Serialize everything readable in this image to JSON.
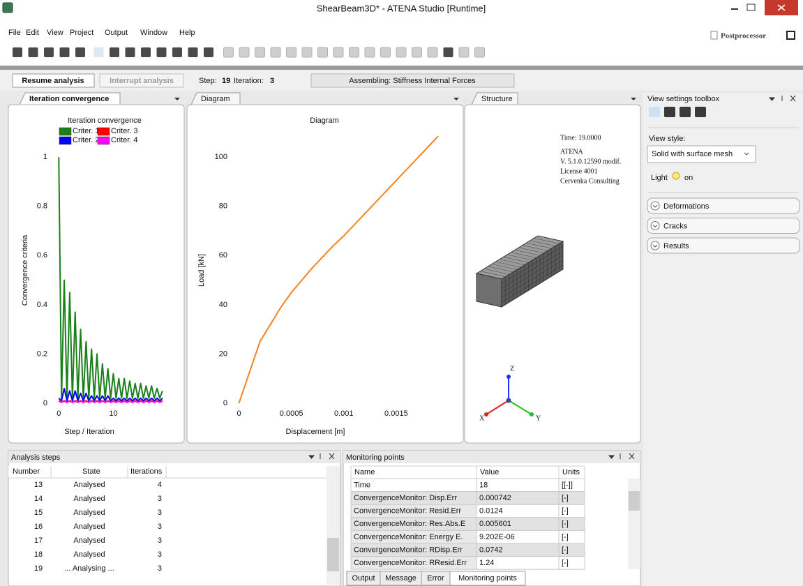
{
  "window": {
    "title": "ShearBeam3D* - ATENA Studio [Runtime]"
  },
  "menu": [
    "File",
    "Edit",
    "View",
    "Project",
    "Output",
    "Window",
    "Help"
  ],
  "mode": "Postprocessor",
  "run_bar": {
    "resume": "Resume analysis",
    "interrupt": "Interrupt analysis",
    "step_label": "Step:",
    "step": 19,
    "iteration_label": "Iteration:",
    "iteration": 3,
    "status": "Assembling: Stiffness Internal Forces"
  },
  "tabs": {
    "convergence": "Iteration convergence",
    "diagram": "Diagram",
    "structure": "Structure"
  },
  "chart_data": [
    {
      "type": "line",
      "title": "Iteration convergence",
      "x_label": "Step / Iteration",
      "y_label": "Convergence criteria",
      "x": [
        0,
        0.5,
        1,
        1.5,
        2,
        2.5,
        3,
        3.5,
        4,
        4.5,
        5,
        5.5,
        6,
        6.5,
        7,
        7.5,
        8,
        8.5,
        9,
        9.5,
        10,
        10.5,
        11,
        11.5,
        12,
        12.5,
        13,
        13.5,
        14,
        14.5,
        15,
        15.5,
        16,
        16.5,
        17,
        17.5,
        18,
        18.5,
        19
      ],
      "series": [
        {
          "name": "Criter. 1",
          "color": "#1a801a",
          "values": [
            1.0,
            0.02,
            0.5,
            0.02,
            0.45,
            0.02,
            0.37,
            0.02,
            0.3,
            0.02,
            0.25,
            0.02,
            0.22,
            0.02,
            0.2,
            0.02,
            0.16,
            0.02,
            0.14,
            0.02,
            0.12,
            0.02,
            0.1,
            0.02,
            0.1,
            0.02,
            0.09,
            0.02,
            0.08,
            0.02,
            0.08,
            0.02,
            0.07,
            0.02,
            0.07,
            0.02,
            0.06,
            0.02,
            0.05
          ]
        },
        {
          "name": "Criter. 2",
          "color": "#0000ff",
          "values": [
            0.02,
            0.01,
            0.06,
            0.01,
            0.05,
            0.01,
            0.05,
            0.01,
            0.04,
            0.01,
            0.04,
            0.01,
            0.03,
            0.01,
            0.03,
            0.01,
            0.03,
            0.01,
            0.03,
            0.01,
            0.02,
            0.01,
            0.02,
            0.01,
            0.02,
            0.01,
            0.02,
            0.01,
            0.02,
            0.01,
            0.02,
            0.01,
            0.02,
            0.01,
            0.02,
            0.01,
            0.02,
            0.01,
            0.02
          ]
        },
        {
          "name": "Criter. 3",
          "color": "#ff0000",
          "values": [
            0.01,
            0.005,
            0.01,
            0.005,
            0.01,
            0.005,
            0.01,
            0.005,
            0.01,
            0.005,
            0.01,
            0.005,
            0.01,
            0.005,
            0.01,
            0.005,
            0.01,
            0.005,
            0.01,
            0.005,
            0.01,
            0.005,
            0.01,
            0.005,
            0.01,
            0.005,
            0.01,
            0.005,
            0.01,
            0.005,
            0.01,
            0.005,
            0.01,
            0.005,
            0.01,
            0.005,
            0.01,
            0.005,
            0.01
          ]
        },
        {
          "name": "Criter. 4",
          "color": "#ff00ff",
          "values": [
            0.008,
            0.003,
            0.008,
            0.003,
            0.008,
            0.003,
            0.008,
            0.003,
            0.008,
            0.003,
            0.008,
            0.003,
            0.008,
            0.003,
            0.008,
            0.003,
            0.008,
            0.003,
            0.008,
            0.003,
            0.008,
            0.003,
            0.008,
            0.003,
            0.008,
            0.003,
            0.008,
            0.003,
            0.008,
            0.003,
            0.008,
            0.003,
            0.008,
            0.003,
            0.008,
            0.003,
            0.008,
            0.003,
            0.008
          ]
        }
      ],
      "xlim": [
        -0.8,
        19.4
      ],
      "ylim": [
        -0.02,
        1.1
      ],
      "xticks": [
        0,
        10
      ],
      "yticks": [
        0,
        0.2,
        0.4,
        0.6,
        0.8,
        1
      ],
      "grid": false,
      "legend": "top"
    },
    {
      "type": "line",
      "title": "Diagram",
      "x_label": "Displacement [m]",
      "y_label": "Load [kN]",
      "x": [
        0,
        0.0001,
        0.0002,
        0.0003,
        0.0004,
        0.0005,
        0.0006,
        0.0007,
        0.0008,
        0.0009,
        0.001,
        0.0011,
        0.0012,
        0.0013,
        0.0014,
        0.0015,
        0.0016,
        0.0017,
        0.0018,
        0.0019
      ],
      "values": [
        0,
        12.5,
        25,
        32,
        39,
        45,
        50,
        55,
        59.5,
        64,
        68,
        72.5,
        77,
        81.5,
        86,
        90.5,
        95,
        99.5,
        104,
        108.5
      ],
      "color": "#f58220",
      "xlim": [
        -5e-05,
        0.00198
      ],
      "ylim": [
        -2,
        110
      ],
      "xticks": [
        0,
        0.0005,
        0.001,
        0.0015
      ],
      "yticks": [
        0,
        20,
        40,
        60,
        80,
        100
      ],
      "grid": false
    }
  ],
  "structure": {
    "time": "Time:  19.0000",
    "info": [
      "ATENA",
      "V. 5.1.0.12590 modif.",
      "License 4001",
      "Cervenka Consulting"
    ],
    "axes": [
      "Z",
      "X",
      "Y"
    ]
  },
  "toolbox": {
    "title": "View settings toolbox",
    "view_style_label": "View style:",
    "view_style": "Solid with surface mesh",
    "light_label": "Light",
    "light_state": "on",
    "sections": [
      "Deformations",
      "Cracks",
      "Results"
    ]
  },
  "analysis_steps": {
    "title": "Analysis steps",
    "columns": [
      "Number",
      "State",
      "Iterations"
    ],
    "rows": [
      [
        13,
        "Analysed",
        4
      ],
      [
        14,
        "Analysed",
        3
      ],
      [
        15,
        "Analysed",
        3
      ],
      [
        16,
        "Analysed",
        3
      ],
      [
        17,
        "Analysed",
        3
      ],
      [
        18,
        "Analysed",
        3
      ],
      [
        19,
        "... Analysing ...",
        3
      ]
    ]
  },
  "monitoring": {
    "title": "Monitoring points",
    "columns": [
      "Name",
      "Value",
      "Units"
    ],
    "rows": [
      [
        "Time",
        "18",
        "[[-]]"
      ],
      [
        "ConvergenceMonitor: Disp.Err",
        "0.000742",
        "[-]"
      ],
      [
        "ConvergenceMonitor: Resid.Err",
        "0.0124",
        "[-]"
      ],
      [
        "ConvergenceMonitor: Res.Abs.E",
        "0.005601",
        "[-]"
      ],
      [
        "ConvergenceMonitor: Energy E.",
        "9.202E-06",
        "[-]"
      ],
      [
        "ConvergenceMonitor: RDisp.Err",
        "0.0742",
        "[-]"
      ],
      [
        "ConvergenceMonitor: RResid.Err",
        "1.24",
        "[-]"
      ]
    ]
  },
  "bottom_tabs": [
    "Output",
    "Message",
    "Error",
    "Monitoring points"
  ]
}
